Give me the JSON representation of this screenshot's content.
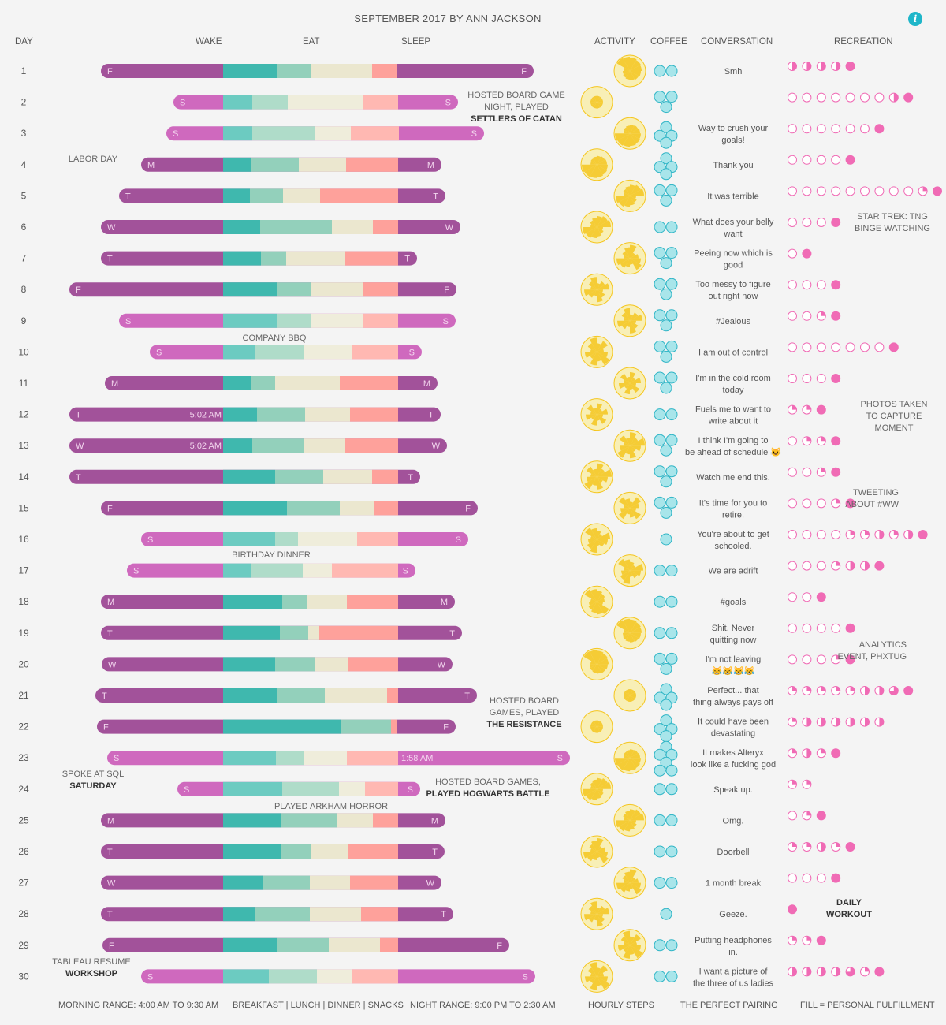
{
  "title": "SEPTEMBER 2017 BY ANN JACKSON",
  "info_icon": "info-icon",
  "headers": {
    "day": "DAY",
    "wake": "WAKE",
    "eat": "EAT",
    "sleep": "SLEEP",
    "activity": "ACTIVITY",
    "coffee": "COFFEE",
    "conversation": "CONVERSATION",
    "recreation": "RECREATION"
  },
  "footer": {
    "morning": "MORNING RANGE: 4:00 AM TO 9:30 AM",
    "meals": "BREAKFAST | LUNCH | DINNER | SNACKS",
    "night": "NIGHT RANGE: 9:00 PM TO 2:30 AM",
    "steps": "HOURLY STEPS",
    "pairing": "THE PERFECT PAIRING",
    "fill": "FILL =  PERSONAL FULFILLMENT"
  },
  "colors": {
    "weekday": "#a2529a",
    "weekend": "#cf69be",
    "eat": [
      "#3fb8ae",
      "#93d0bb",
      "#ebe7cf",
      "#fea19b"
    ],
    "eat_weekend": [
      "#6ccbc1",
      "#afdcc9",
      "#efeddb",
      "#ffb8b2"
    ],
    "coffee": "#a8e5ea",
    "coffee_stroke": "#2fb5c6",
    "pie": "#f5c61e",
    "pie_light": "#f8efb6",
    "rec": "#f06bb5"
  },
  "chart_data": {
    "type": "table",
    "days": [
      {
        "day": "1",
        "dow": "F",
        "weekend": false,
        "wake": "",
        "sleep": "",
        "eat": [
          69,
          42,
          78,
          32
        ],
        "coffee": 2,
        "conversation": "Smh",
        "rec": [
          0.5,
          0.5,
          0.5,
          0.5,
          1
        ]
      },
      {
        "day": "2",
        "dow": "S",
        "weekend": true,
        "wake": "",
        "sleep": "",
        "eat": [
          37,
          45,
          95,
          45
        ],
        "coffee": 3,
        "conversation": "",
        "rec": [
          0,
          0,
          0,
          0,
          0,
          0,
          0,
          0.5,
          1
        ]
      },
      {
        "day": "3",
        "dow": "S",
        "weekend": true,
        "wake": "",
        "sleep": "",
        "eat": [
          37,
          80,
          45,
          61
        ],
        "coffee": 4,
        "conversation": "Way to crush your goals!",
        "rec": [
          0,
          0,
          0,
          0,
          0,
          0,
          1
        ]
      },
      {
        "day": "4",
        "dow": "M",
        "weekend": false,
        "wake": "",
        "sleep": "",
        "eat": [
          36,
          60,
          60,
          66
        ],
        "coffee": 4,
        "conversation": "Thank you",
        "rec": [
          0,
          0,
          0,
          0,
          1
        ]
      },
      {
        "day": "5",
        "dow": "T",
        "weekend": false,
        "wake": "",
        "sleep": "",
        "eat": [
          34,
          42,
          47,
          99
        ],
        "coffee": 3,
        "conversation": "It was terrible",
        "rec": [
          0,
          0,
          0,
          0,
          0,
          0,
          0,
          0,
          0,
          0.25,
          1
        ]
      },
      {
        "day": "6",
        "dow": "W",
        "weekend": false,
        "wake": "",
        "sleep": "",
        "eat": [
          47,
          91,
          52,
          32
        ],
        "coffee": 2,
        "conversation": "What does your belly want",
        "rec": [
          0,
          0,
          0,
          1
        ]
      },
      {
        "day": "7",
        "dow": "T",
        "weekend": false,
        "wake": "",
        "sleep": "",
        "eat": [
          48,
          32,
          75,
          67
        ],
        "coffee": 3,
        "conversation": "Peeing now which is good",
        "rec": [
          0,
          1
        ]
      },
      {
        "day": "8",
        "dow": "F",
        "weekend": false,
        "wake": "",
        "sleep": "",
        "eat": [
          69,
          43,
          65,
          45
        ],
        "coffee": 3,
        "conversation": "Too messy to figure out right now",
        "rec": [
          0,
          0,
          0,
          1
        ]
      },
      {
        "day": "9",
        "dow": "S",
        "weekend": true,
        "wake": "",
        "sleep": "",
        "eat": [
          69,
          42,
          66,
          45
        ],
        "coffee": 3,
        "conversation": "#Jealous",
        "rec": [
          0,
          0,
          0.25,
          1
        ]
      },
      {
        "day": "10",
        "dow": "S",
        "weekend": true,
        "wake": "",
        "sleep": "",
        "eat": [
          41,
          62,
          61,
          58
        ],
        "coffee": 3,
        "conversation": "I am out of control",
        "rec": [
          0,
          0,
          0,
          0,
          0,
          0,
          0,
          1
        ]
      },
      {
        "day": "11",
        "dow": "M",
        "weekend": false,
        "wake": "",
        "sleep": "",
        "eat": [
          35,
          31,
          82,
          74
        ],
        "coffee": 3,
        "conversation": "I'm in the cold room today",
        "rec": [
          0,
          0,
          0,
          1
        ]
      },
      {
        "day": "12",
        "dow": "T",
        "weekend": false,
        "wake": "5:02 AM",
        "sleep": "",
        "eat": [
          43,
          61,
          57,
          61
        ],
        "coffee": 2,
        "conversation": "Fuels me to want to write about it",
        "rec": [
          0.25,
          0.25,
          1
        ]
      },
      {
        "day": "13",
        "dow": "W",
        "weekend": false,
        "wake": "5:02 AM",
        "sleep": "",
        "eat": [
          37,
          65,
          53,
          67
        ],
        "coffee": 3,
        "conversation": "I think I'm going to be ahead of schedule 😺",
        "rec": [
          0,
          0.25,
          0.25,
          1
        ]
      },
      {
        "day": "14",
        "dow": "T",
        "weekend": false,
        "wake": "",
        "sleep": "",
        "eat": [
          66,
          61,
          62,
          33
        ],
        "coffee": 3,
        "conversation": "Watch me end this.",
        "rec": [
          0,
          0,
          0.25,
          1
        ]
      },
      {
        "day": "15",
        "dow": "F",
        "weekend": false,
        "wake": "",
        "sleep": "",
        "eat": [
          81,
          67,
          43,
          31
        ],
        "coffee": 3,
        "conversation": "It's time for you to retire.",
        "rec": [
          0,
          0,
          0,
          0.25,
          1
        ]
      },
      {
        "day": "16",
        "dow": "S",
        "weekend": true,
        "wake": "",
        "sleep": "",
        "eat": [
          66,
          29,
          75,
          52
        ],
        "coffee": 1,
        "conversation": "You're about to get schooled.",
        "rec": [
          0,
          0,
          0,
          0,
          0.25,
          0.25,
          0.5,
          0.25,
          0.5,
          1
        ]
      },
      {
        "day": "17",
        "dow": "S",
        "weekend": true,
        "wake": "",
        "sleep": "",
        "eat": [
          36,
          65,
          37,
          84
        ],
        "coffee": 2,
        "conversation": "We are adrift",
        "rec": [
          0,
          0,
          0,
          0.25,
          0.5,
          0.5,
          1
        ]
      },
      {
        "day": "18",
        "dow": "M",
        "weekend": false,
        "wake": "",
        "sleep": "",
        "eat": [
          75,
          32,
          50,
          65
        ],
        "coffee": 2,
        "conversation": "#goals",
        "rec": [
          0,
          0,
          1
        ]
      },
      {
        "day": "19",
        "dow": "T",
        "weekend": false,
        "wake": "",
        "sleep": "",
        "eat": [
          72,
          36,
          14,
          100
        ],
        "coffee": 2,
        "conversation": "Shit.  Never quitting now",
        "rec": [
          0,
          0,
          0,
          0,
          1
        ]
      },
      {
        "day": "20",
        "dow": "W",
        "weekend": false,
        "wake": "",
        "sleep": "",
        "eat": [
          66,
          50,
          43,
          63
        ],
        "coffee": 3,
        "conversation": "I'm not leaving 😹😹😹😹",
        "rec": [
          0,
          0,
          0,
          0.25,
          1
        ]
      },
      {
        "day": "21",
        "dow": "T",
        "weekend": false,
        "wake": "",
        "sleep": "",
        "eat": [
          69,
          60,
          79,
          14
        ],
        "coffee": 4,
        "conversation": "Perfect... that thing always pays off",
        "rec": [
          0.25,
          0.25,
          0.25,
          0.25,
          0.25,
          0.5,
          0.5,
          0.75,
          1
        ]
      },
      {
        "day": "22",
        "dow": "F",
        "weekend": false,
        "wake": "",
        "sleep": "",
        "eat": [
          149,
          64,
          0,
          8
        ],
        "coffee": 4,
        "conversation": "It could have been devastating",
        "rec": [
          0.25,
          0.5,
          0.5,
          0.5,
          0.5,
          0.5,
          0.5
        ]
      },
      {
        "day": "23",
        "dow": "S",
        "weekend": true,
        "wake": "",
        "sleep": "1:58 AM",
        "eat": [
          67,
          36,
          54,
          65
        ],
        "coffee": 6,
        "conversation": "It makes Alteryx look like a fucking god",
        "rec": [
          0.25,
          0.5,
          0.25,
          1
        ]
      },
      {
        "day": "24",
        "dow": "S",
        "weekend": true,
        "wake": "",
        "sleep": "",
        "eat": [
          75,
          72,
          33,
          42
        ],
        "coffee": 2,
        "conversation": "Speak up.",
        "rec": [
          0.25,
          0.25
        ]
      },
      {
        "day": "25",
        "dow": "M",
        "weekend": false,
        "wake": "",
        "sleep": "",
        "eat": [
          74,
          70,
          46,
          32
        ],
        "coffee": 2,
        "conversation": "Omg.",
        "rec": [
          0,
          0.25,
          1
        ]
      },
      {
        "day": "26",
        "dow": "T",
        "weekend": false,
        "wake": "",
        "sleep": "",
        "eat": [
          74,
          37,
          47,
          64
        ],
        "coffee": 2,
        "conversation": "Doorbell",
        "rec": [
          0.25,
          0.25,
          0.5,
          0.25,
          1
        ]
      },
      {
        "day": "27",
        "dow": "W",
        "weekend": false,
        "wake": "",
        "sleep": "",
        "eat": [
          50,
          60,
          51,
          61
        ],
        "coffee": 2,
        "conversation": "1 month break",
        "rec": [
          0,
          0,
          0,
          1
        ]
      },
      {
        "day": "28",
        "dow": "T",
        "weekend": false,
        "wake": "",
        "sleep": "",
        "eat": [
          40,
          70,
          65,
          47
        ],
        "coffee": 1,
        "conversation": "Geeze.",
        "rec": [
          1
        ]
      },
      {
        "day": "29",
        "dow": "F",
        "weekend": false,
        "wake": "",
        "sleep": "",
        "eat": [
          69,
          65,
          65,
          23
        ],
        "coffee": 2,
        "conversation": "Putting headphones in.",
        "rec": [
          0.25,
          0.25,
          1
        ]
      },
      {
        "day": "30",
        "dow": "S",
        "weekend": true,
        "wake": "",
        "sleep": "",
        "eat": [
          58,
          61,
          44,
          59
        ],
        "coffee": 2,
        "conversation": "I want a picture of the three of us ladies",
        "rec": [
          0.5,
          0.5,
          0.5,
          0.5,
          0.75,
          0.25,
          1
        ]
      }
    ],
    "annotations": [
      {
        "row": 1,
        "lines": [
          "HOSTED BOARD GAME",
          "NIGHT, PLAYED",
          "SETTLERS OF CATAN"
        ],
        "bold_from": 2
      },
      {
        "row": 4,
        "lines": [
          "LABOR DAY"
        ],
        "bold_from": 9
      },
      {
        "row": 9,
        "lines": [
          "COMPANY BBQ"
        ],
        "bold_from": 9
      },
      {
        "row": 16,
        "lines": [
          "BIRTHDAY DINNER"
        ],
        "bold_from": 9
      },
      {
        "row": 21,
        "lines": [
          "HOSTED BOARD",
          "GAMES, PLAYED",
          "THE RESISTANCE"
        ],
        "bold_from": 2
      },
      {
        "row": 23,
        "lines": [
          "SPOKE AT SQL",
          "SATURDAY"
        ],
        "bold_from": 1
      },
      {
        "row": 24,
        "lines": [
          "HOSTED BOARD GAMES,",
          "PLAYED HOGWARTS BATTLE"
        ],
        "bold_from": 1
      },
      {
        "row": 24,
        "lines": [
          "PLAYED ARKHAM HORROR"
        ],
        "bold_from": 9
      },
      {
        "row": 30,
        "lines": [
          "TABLEAU RESUME",
          "WORKSHOP"
        ],
        "bold_from": 1
      },
      {
        "row": 5,
        "lines": [
          "STAR TREK: TNG",
          "BINGE WATCHING"
        ],
        "bold_from": 9
      },
      {
        "row": 12,
        "lines": [
          "PHOTOS TAKEN",
          "TO CAPTURE",
          "MOMENT"
        ],
        "bold_from": 9
      },
      {
        "row": 15,
        "lines": [
          "TWEETING",
          "ABOUT #WW"
        ],
        "bold_from": 9
      },
      {
        "row": 20,
        "lines": [
          "ANALYTICS",
          "EVENT, PHXTUG"
        ],
        "bold_from": 9
      },
      {
        "row": 28,
        "lines": [
          "DAILY",
          "WORKOUT"
        ],
        "bold_from": 0
      }
    ]
  }
}
